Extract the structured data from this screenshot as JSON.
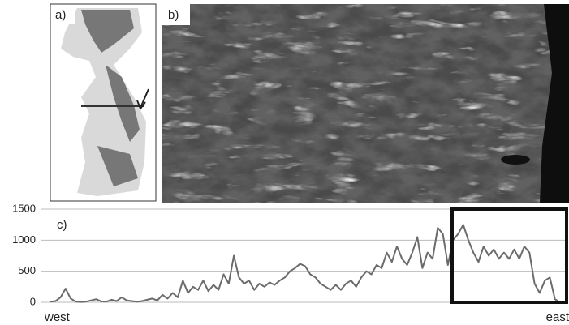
{
  "panels": {
    "a": "a)",
    "b": "b)"
  },
  "chart_data": {
    "type": "line",
    "label": "c)",
    "annotations": [
      "west",
      "east"
    ],
    "color": "#6b6b6b",
    "values": [
      10,
      20,
      80,
      220,
      60,
      10,
      5,
      10,
      30,
      50,
      15,
      10,
      40,
      20,
      80,
      30,
      20,
      10,
      20,
      40,
      60,
      30,
      120,
      60,
      150,
      80,
      350,
      150,
      250,
      200,
      350,
      180,
      280,
      200,
      450,
      300,
      750,
      400,
      300,
      350,
      200,
      300,
      250,
      320,
      280,
      350,
      400,
      500,
      550,
      620,
      580,
      450,
      400,
      300,
      250,
      200,
      280,
      200,
      300,
      350,
      250,
      400,
      500,
      450,
      600,
      550,
      800,
      650,
      900,
      700,
      600,
      800,
      1050,
      550,
      800,
      700,
      1200,
      1100,
      600,
      1000,
      1100,
      1250,
      1000,
      800,
      650,
      900,
      750,
      850,
      700,
      800,
      700,
      850,
      700,
      900,
      800,
      300,
      150,
      350,
      400,
      50,
      0
    ],
    "ylim": [
      0,
      1500
    ],
    "yticks": [
      0,
      500,
      1000,
      1500
    ],
    "grid": true
  }
}
